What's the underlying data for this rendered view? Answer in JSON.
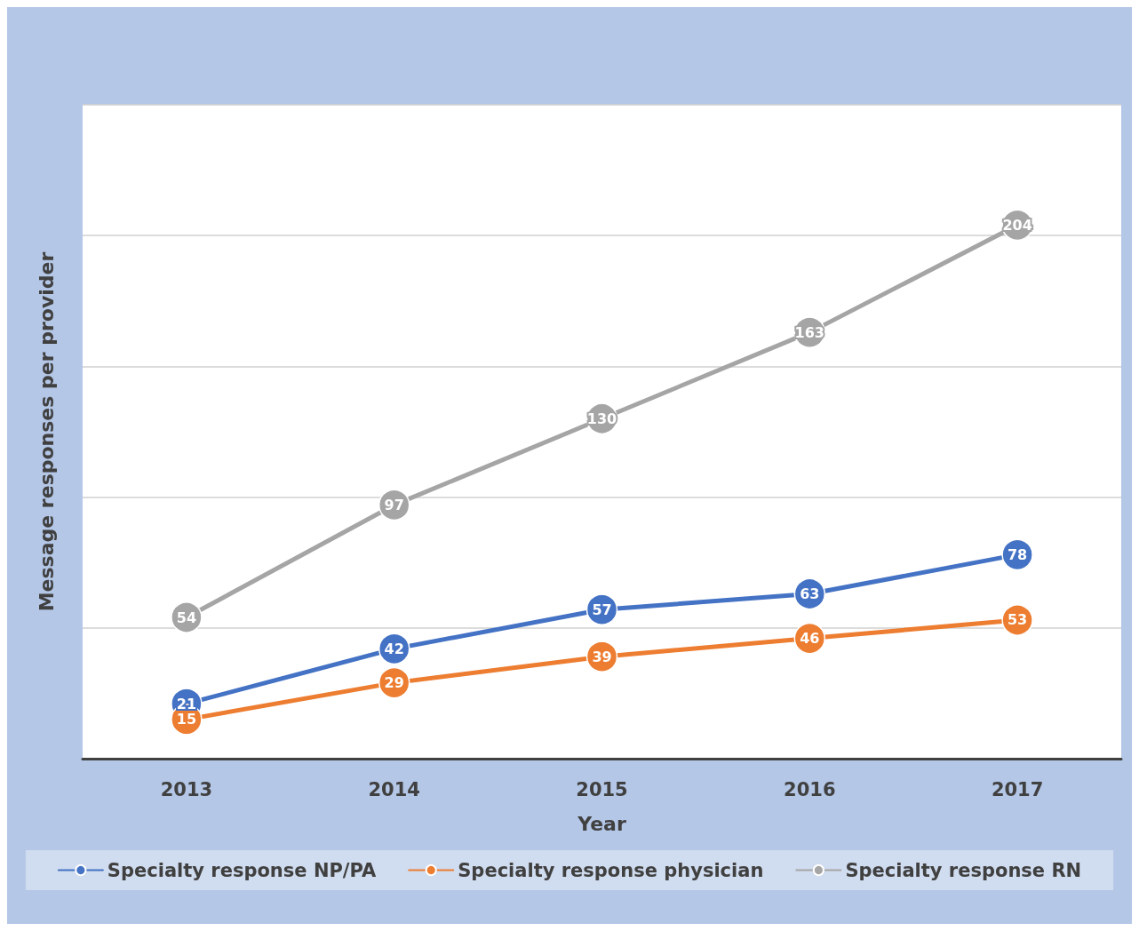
{
  "chart_data": {
    "type": "line",
    "xlabel": "Year",
    "ylabel": "Message responses per provider",
    "categories": [
      "2013",
      "2014",
      "2015",
      "2016",
      "2017"
    ],
    "series": [
      {
        "name": "Specialty response NP/PA",
        "color": "#4472c4",
        "values": [
          21,
          42,
          57,
          63,
          78
        ]
      },
      {
        "name": "Specialty response physician",
        "color": "#ed7d31",
        "values": [
          15,
          29,
          39,
          46,
          53
        ]
      },
      {
        "name": "Specialty response RN",
        "color": "#a5a5a5",
        "values": [
          54,
          97,
          130,
          163,
          204
        ]
      }
    ],
    "ylim": [
      0,
      250
    ],
    "yticks": [
      {
        "value": 0,
        "label": null
      },
      {
        "value": 50,
        "label": null
      },
      {
        "value": 100,
        "label": null
      },
      {
        "value": 150,
        "label": null
      },
      {
        "value": 200,
        "label": null
      },
      {
        "value": 250,
        "label": null
      }
    ],
    "tick_labels": "x",
    "grid": "y",
    "legend": "bottom",
    "marker": "circle",
    "line_style": "solid",
    "data_labels": true
  }
}
